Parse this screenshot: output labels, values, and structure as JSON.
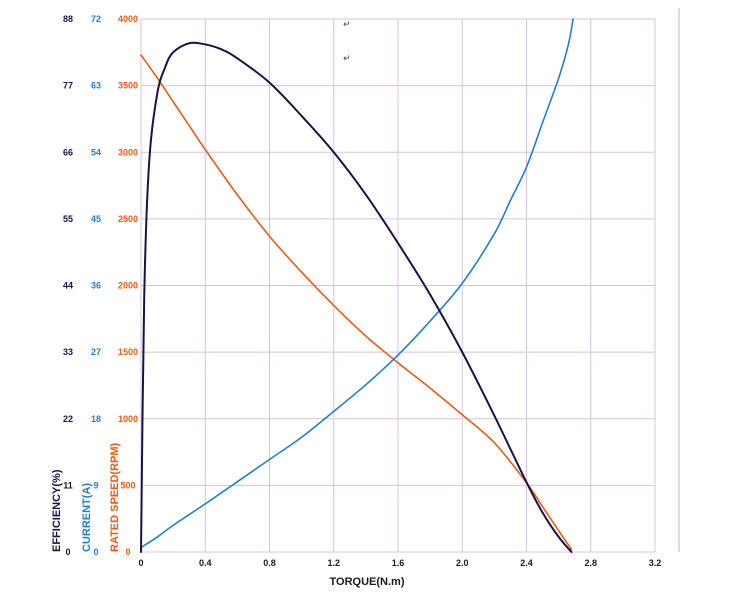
{
  "chart_data": {
    "type": "line",
    "title": "",
    "xlabel": "TORQUE(N.m)",
    "xlim": [
      0,
      3.2
    ],
    "x_ticks": [
      "0",
      "0.4",
      "0.8",
      "1.2",
      "1.6",
      "2.0",
      "2.4",
      "2.8",
      "3.2"
    ],
    "grid": true,
    "y_axes": [
      {
        "key": "efficiency",
        "label": "EFFICIENCY(%)",
        "range": [
          0,
          88
        ],
        "ticks": [
          "0",
          "11",
          "22",
          "33",
          "44",
          "55",
          "66",
          "77",
          "88"
        ],
        "color": "#1a1246"
      },
      {
        "key": "current",
        "label": "CURRENT(A)",
        "range": [
          0,
          72
        ],
        "ticks": [
          "0",
          "9",
          "18",
          "27",
          "36",
          "45",
          "54",
          "63",
          "72"
        ],
        "color": "#1f7fd1"
      },
      {
        "key": "speed",
        "label": "RATED SPEED(RPM)",
        "range": [
          0,
          4000
        ],
        "ticks": [
          "0",
          "500",
          "1000",
          "1500",
          "2000",
          "2500",
          "3000",
          "3500",
          "4000"
        ],
        "color": "#ef5a10"
      }
    ],
    "series": [
      {
        "axis": "speed",
        "color": "#ef5a10",
        "points": [
          [
            0,
            3730
          ],
          [
            0.1,
            3560
          ],
          [
            0.2,
            3380
          ],
          [
            0.3,
            3200
          ],
          [
            0.4,
            3020
          ],
          [
            0.6,
            2680
          ],
          [
            0.8,
            2370
          ],
          [
            1.0,
            2100
          ],
          [
            1.2,
            1850
          ],
          [
            1.4,
            1620
          ],
          [
            1.6,
            1420
          ],
          [
            1.8,
            1230
          ],
          [
            2.0,
            1030
          ],
          [
            2.2,
            820
          ],
          [
            2.4,
            520
          ],
          [
            2.5,
            340
          ],
          [
            2.6,
            160
          ],
          [
            2.68,
            20
          ]
        ]
      },
      {
        "axis": "current",
        "color": "#1f7fd1",
        "points": [
          [
            0,
            0.6
          ],
          [
            0.1,
            2
          ],
          [
            0.2,
            3.6
          ],
          [
            0.4,
            6.5
          ],
          [
            0.6,
            9.5
          ],
          [
            0.8,
            12.5
          ],
          [
            1.0,
            15.5
          ],
          [
            1.2,
            19
          ],
          [
            1.4,
            22.6
          ],
          [
            1.6,
            26.6
          ],
          [
            1.8,
            31.2
          ],
          [
            2.0,
            36.3
          ],
          [
            2.2,
            43
          ],
          [
            2.3,
            47.5
          ],
          [
            2.4,
            52
          ],
          [
            2.5,
            58
          ],
          [
            2.6,
            64
          ],
          [
            2.66,
            68.5
          ],
          [
            2.69,
            72
          ]
        ]
      },
      {
        "axis": "efficiency",
        "color": "#1a1246",
        "points": [
          [
            0,
            0
          ],
          [
            0.02,
            42
          ],
          [
            0.05,
            64
          ],
          [
            0.1,
            75.5
          ],
          [
            0.15,
            80
          ],
          [
            0.2,
            82.5
          ],
          [
            0.3,
            84
          ],
          [
            0.4,
            83.8
          ],
          [
            0.5,
            83
          ],
          [
            0.6,
            81.5
          ],
          [
            0.8,
            77.5
          ],
          [
            1.0,
            72
          ],
          [
            1.2,
            66
          ],
          [
            1.4,
            59
          ],
          [
            1.6,
            51
          ],
          [
            1.8,
            42.5
          ],
          [
            2.0,
            33
          ],
          [
            2.2,
            22.5
          ],
          [
            2.4,
            11.5
          ],
          [
            2.5,
            6.5
          ],
          [
            2.6,
            2.5
          ],
          [
            2.68,
            0
          ]
        ]
      }
    ],
    "annotations": [
      "↵",
      "↵"
    ]
  }
}
